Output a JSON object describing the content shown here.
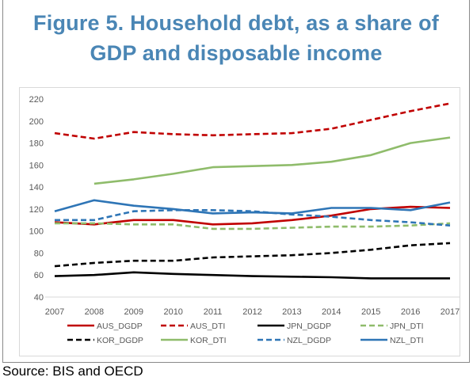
{
  "figure": {
    "title_line1": "Figure 5. Household debt, as a share of",
    "title_line2": "GDP and disposable income",
    "source": "Source: BIS and OECD"
  },
  "chart_data": {
    "type": "line",
    "x": [
      "2007",
      "2008",
      "2009",
      "2010",
      "2011",
      "2012",
      "2013",
      "2014",
      "2015",
      "2016",
      "2017"
    ],
    "ylim": [
      40,
      220
    ],
    "yticks": [
      40,
      60,
      80,
      100,
      120,
      140,
      160,
      180,
      200,
      220
    ],
    "grid": false,
    "legend_position": "bottom",
    "series": [
      {
        "name": "AUS_DGDP",
        "color": "#c00000",
        "dash": "solid",
        "values": [
          108,
          106,
          110,
          110,
          106,
          107,
          110,
          114,
          120,
          122,
          121
        ]
      },
      {
        "name": "AUS_DTI",
        "color": "#c00000",
        "dash": "dashed",
        "values": [
          189,
          184,
          190,
          188,
          187,
          188,
          189,
          193,
          201,
          209,
          216
        ]
      },
      {
        "name": "JPN_DGDP",
        "color": "#000000",
        "dash": "solid",
        "values": [
          59,
          60,
          62.5,
          61,
          60,
          59,
          58.5,
          58,
          57,
          57,
          57
        ]
      },
      {
        "name": "JPN_DTI",
        "color": "#8fbc6b",
        "dash": "dashed",
        "values": [
          107,
          107,
          106,
          106,
          102,
          102,
          103,
          104,
          104,
          105,
          107
        ]
      },
      {
        "name": "KOR_DGDP",
        "color": "#000000",
        "dash": "dashed",
        "values": [
          68,
          71,
          73,
          73,
          76,
          77,
          78,
          80,
          83,
          87,
          89
        ]
      },
      {
        "name": "KOR_DTI",
        "color": "#8fbc6b",
        "dash": "solid",
        "values": [
          null,
          143,
          147,
          152,
          158,
          159,
          160,
          163,
          169,
          180,
          185
        ]
      },
      {
        "name": "NZL_DGDP",
        "color": "#2e75b6",
        "dash": "dashed",
        "values": [
          110,
          110,
          118,
          119,
          119,
          118,
          115,
          113,
          110,
          108,
          105
        ]
      },
      {
        "name": "NZL_DTI",
        "color": "#2e75b6",
        "dash": "solid",
        "values": [
          118,
          128,
          123,
          120,
          116,
          117,
          116,
          121,
          121,
          119,
          126
        ]
      }
    ]
  }
}
